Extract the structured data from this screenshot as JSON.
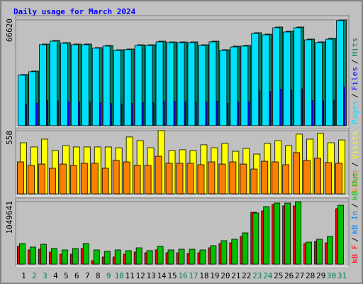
{
  "title": "Daily usage for March 2024",
  "legend_separator": "/",
  "categories": [
    "1",
    "2",
    "3",
    "4",
    "5",
    "6",
    "7",
    "8",
    "9",
    "10",
    "11",
    "12",
    "13",
    "14",
    "15",
    "16",
    "17",
    "18",
    "19",
    "20",
    "21",
    "22",
    "23",
    "24",
    "25",
    "26",
    "27",
    "28",
    "29",
    "30",
    "31"
  ],
  "category_colors": [
    "#000000",
    "#00805c",
    "#00805c",
    "#000000",
    "#000000",
    "#000000",
    "#000000",
    "#000000",
    "#00805c",
    "#00805c",
    "#000000",
    "#000000",
    "#000000",
    "#000000",
    "#000000",
    "#00805c",
    "#00805c",
    "#000000",
    "#000000",
    "#000000",
    "#000000",
    "#000000",
    "#00805c",
    "#00805c",
    "#000000",
    "#000000",
    "#000000",
    "#000000",
    "#000000",
    "#00805c",
    "#00805c"
  ],
  "chart_data": [
    {
      "type": "bar",
      "ylim": [
        0,
        66620
      ],
      "yticks": [
        66620
      ],
      "series": [
        {
          "name": "Pages",
          "color": "#00e0ff",
          "values": [
            31800,
            34000,
            51000,
            53200,
            51900,
            51000,
            51000,
            48800,
            50100,
            47400,
            47900,
            50500,
            50500,
            52800,
            52300,
            52300,
            52300,
            50500,
            52800,
            47400,
            49600,
            50100,
            58100,
            57200,
            61700,
            59000,
            61700,
            54100,
            52300,
            54500,
            66200
          ]
        },
        {
          "name": "Files",
          "color": "#0000ff",
          "values": [
            13500,
            14200,
            15800,
            15600,
            15100,
            14800,
            15000,
            14500,
            13900,
            13700,
            14100,
            14600,
            14400,
            15200,
            15300,
            15000,
            14700,
            14900,
            15400,
            14200,
            14800,
            15100,
            22000,
            21500,
            23000,
            22400,
            23200,
            15900,
            15600,
            16100,
            24500
          ]
        },
        {
          "name": "Hits",
          "color": "#00805c",
          "values": [
            32190,
            34430,
            51420,
            53650,
            52310,
            51420,
            51420,
            49180,
            50520,
            47840,
            48290,
            50970,
            50970,
            53210,
            52760,
            52760,
            52760,
            50970,
            53210,
            47840,
            50080,
            50520,
            58570,
            57680,
            62150,
            59470,
            62150,
            54550,
            52760,
            54990,
            66620
          ]
        }
      ]
    },
    {
      "type": "bar",
      "ylim": [
        0,
        558
      ],
      "yticks": [
        558
      ],
      "series": [
        {
          "name": "Sites",
          "color": "#ff8000",
          "values": [
            282,
            251,
            263,
            226,
            263,
            251,
            270,
            270,
            226,
            295,
            282,
            251,
            251,
            332,
            270,
            270,
            270,
            257,
            282,
            263,
            282,
            263,
            219,
            288,
            282,
            257,
            364,
            295,
            314,
            276,
            270
          ]
        },
        {
          "name": "Visits",
          "color": "#ffff00",
          "values": [
            451,
            414,
            483,
            382,
            426,
            414,
            414,
            414,
            414,
            407,
            502,
            470,
            407,
            558,
            382,
            389,
            382,
            433,
            407,
            445,
            376,
            401,
            351,
            445,
            470,
            426,
            527,
            483,
            533,
            451,
            476
          ]
        }
      ]
    },
    {
      "type": "bar",
      "ylim": [
        0,
        1049641
      ],
      "yticks": [
        1049641
      ],
      "series": [
        {
          "name": "kB F",
          "color": "#ff0000",
          "values": [
            298200,
            238600,
            250500,
            202800,
            167000,
            167000,
            262400,
            59600,
            119300,
            119300,
            167000,
            202800,
            190800,
            238600,
            190800,
            190800,
            178900,
            190800,
            274300,
            345900,
            357800,
            465200,
            870700,
            894600,
            1002000,
            978100,
            978100,
            345900,
            381700,
            357800,
            930400
          ]
        },
        {
          "name": "kB In",
          "color": "#0080ff",
          "values": [
            null,
            null,
            null,
            null,
            null,
            null,
            null,
            null,
            null,
            null,
            null,
            null,
            null,
            null,
            null,
            null,
            null,
            null,
            null,
            null,
            null,
            null,
            null,
            null,
            null,
            null,
            null,
            null,
            null,
            null,
            null
          ]
        },
        {
          "name": "kB Out",
          "color": "#00c000",
          "values": [
            345900,
            286300,
            334000,
            262400,
            238600,
            262400,
            345900,
            238600,
            214700,
            238600,
            226600,
            274300,
            226600,
            298200,
            238600,
            250500,
            250500,
            238600,
            310100,
            393600,
            417500,
            524800,
            858800,
            966200,
            1025800,
            1025800,
            1049641,
            369800,
            417500,
            465200,
            990000
          ]
        }
      ]
    }
  ]
}
